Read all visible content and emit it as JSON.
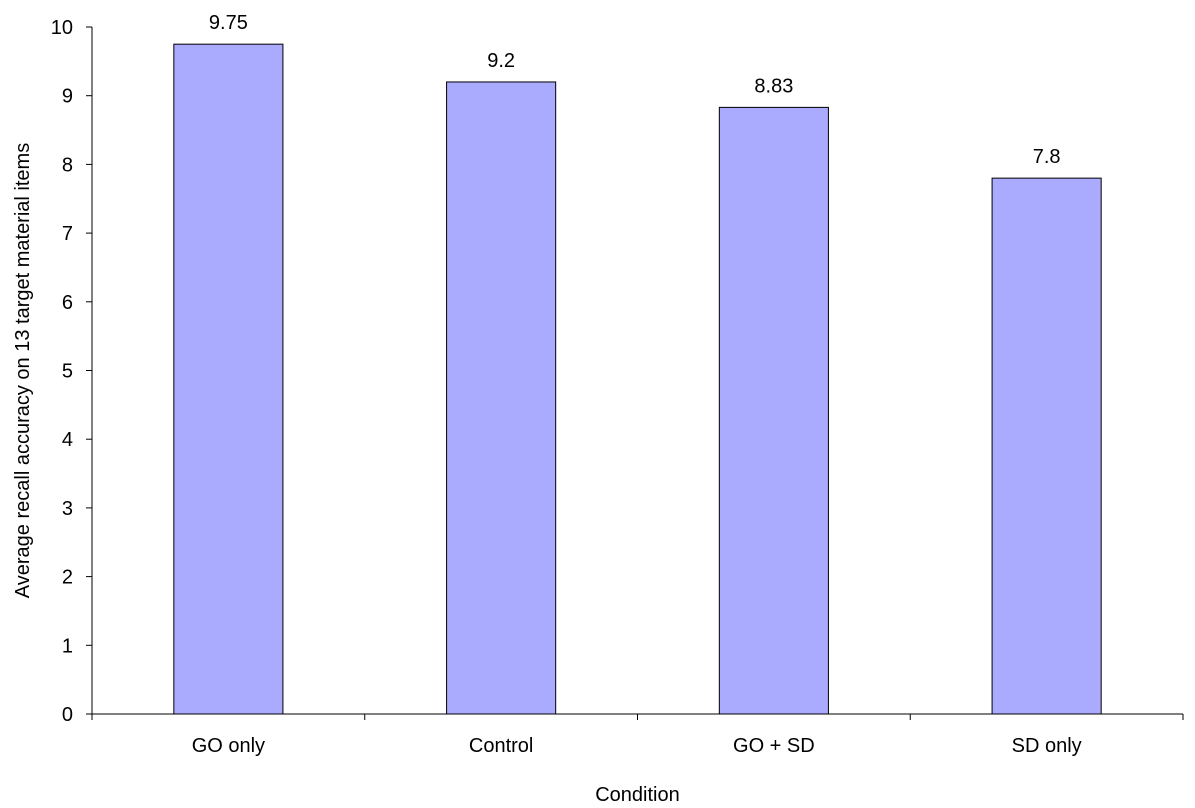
{
  "chart_data": {
    "type": "bar",
    "categories": [
      "GO only",
      "Control",
      "GO + SD",
      "SD only"
    ],
    "values": [
      9.75,
      9.2,
      8.83,
      7.8
    ],
    "data_labels": [
      "9.75",
      "9.2",
      "8.83",
      "7.8"
    ],
    "xlabel": "Condition",
    "ylabel": "Average recall accuracy on 13 target material items",
    "ylim": [
      0,
      10
    ],
    "yticks": [
      0,
      1,
      2,
      3,
      4,
      5,
      6,
      7,
      8,
      9,
      10
    ],
    "ytick_labels": [
      "0",
      "1",
      "2",
      "3",
      "4",
      "5",
      "6",
      "7",
      "8",
      "9",
      "10"
    ],
    "grid": false,
    "legend": "none",
    "bar_color": "#aaaaff",
    "bar_edge_color": "#000000",
    "axis_color": "#000000"
  }
}
